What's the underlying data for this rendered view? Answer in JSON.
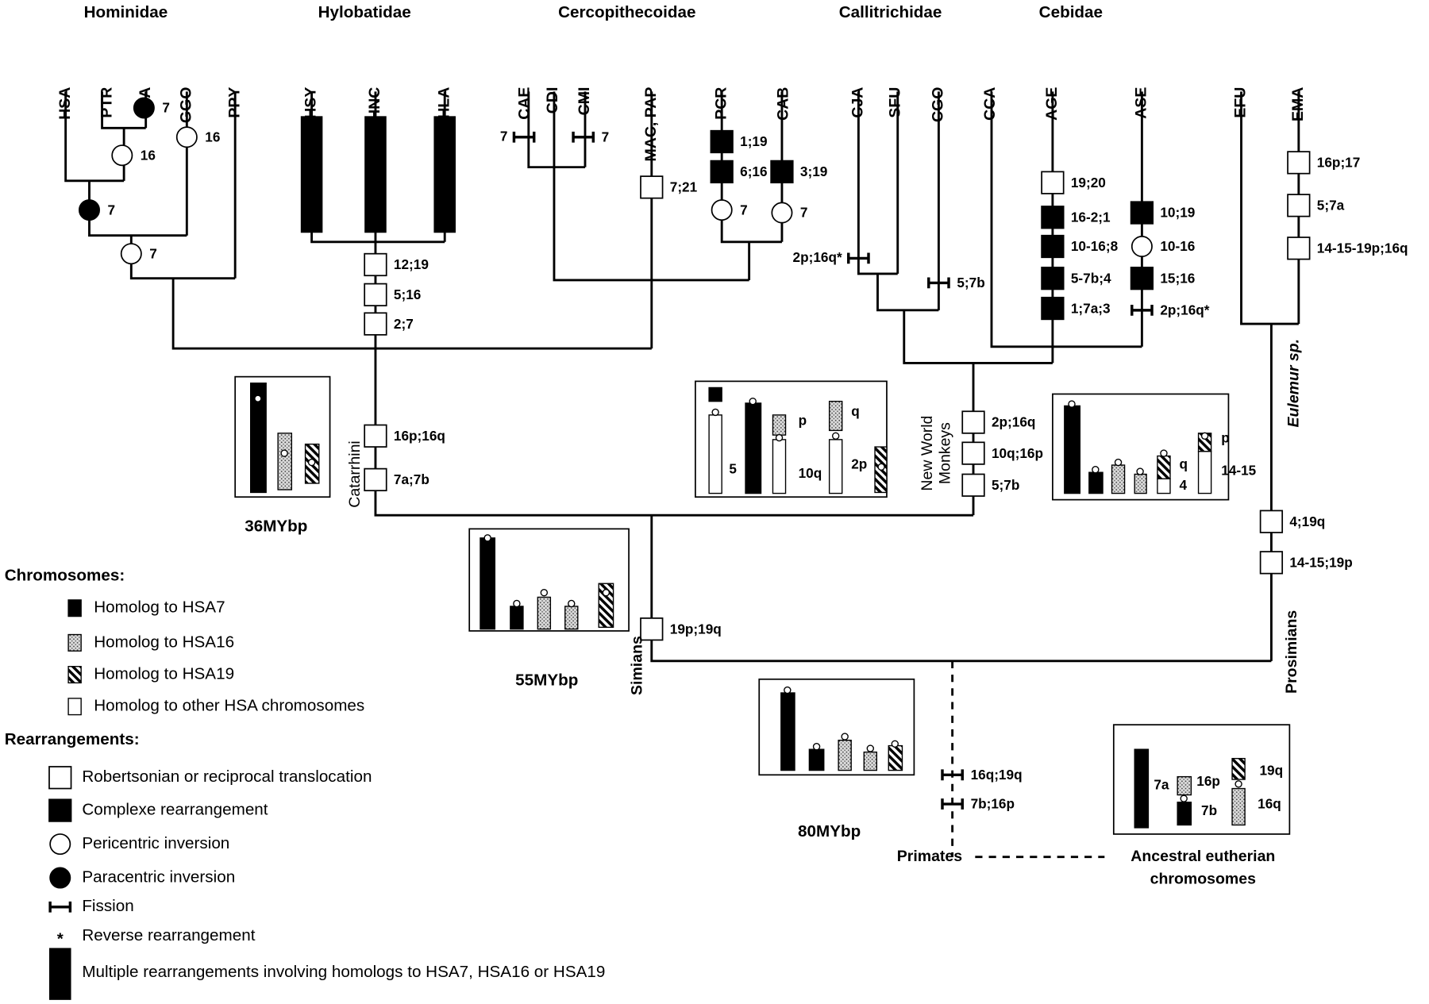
{
  "families": [
    "Hominidae",
    "Hylobatidae",
    "Cercopithecoidae",
    "Callitrichidae",
    "Cebidae"
  ],
  "species": [
    "HSA",
    "PTR",
    "PPA",
    "GGO",
    "PPY",
    "HSY",
    "HNC",
    "HLA",
    "CAE",
    "CDI",
    "CMI",
    "MAC, PAP",
    "PCR",
    "CAB",
    "CJA",
    "SFU",
    "CGO",
    "CCA",
    "AGE",
    "ASE",
    "EFU",
    "EMA"
  ],
  "events": [
    "7",
    "16",
    "16",
    "7",
    "7",
    "12;19",
    "5;16",
    "2;7",
    "16p;16q",
    "7a;7b",
    "7",
    "7",
    "7;21",
    "1;19",
    "6;16",
    "7",
    "3;19",
    "7",
    "2p;16q*",
    "5;7b",
    "19;20",
    "16-2;1",
    "10-16;8",
    "5-7b;4",
    "1;7a;3",
    "10;19",
    "10-16",
    "15;16",
    "2p;16q*",
    "2p;16q",
    "10q;16p",
    "5;7b",
    "16p;17",
    "5;7a",
    "14-15-19p;16q",
    "4;19q",
    "14-15;19p",
    "19p;19q",
    "16q;19q",
    "7b;16p"
  ],
  "clades": {
    "catarrhini": "Catarrhini",
    "new_world_monkeys": [
      "New World",
      "Monkeys"
    ],
    "simians": "Simians",
    "prosimians": "Prosimians",
    "eulemur": "Eulemur sp.",
    "primates": "Primates",
    "ancestral": [
      "Ancestral  eutherian",
      "chromosomes"
    ]
  },
  "ages": [
    "36MYbp",
    "55MYbp",
    "80MYbp"
  ],
  "karyotype_labels": [
    "5",
    "p",
    "10q",
    "q",
    "2p",
    "q",
    "4",
    "p",
    "14-15",
    "7a",
    "16p",
    "7b",
    "19q",
    "16q"
  ],
  "legend": {
    "chromosomes_title": "Chromosomes:",
    "chromosomes": [
      "Homolog to HSA7",
      "Homolog to HSA16",
      "Homolog to HSA19",
      "Homolog to other HSA chromosomes"
    ],
    "rearrangements_title": "Rearrangements:",
    "rearrangements": [
      "Robertsonian or reciprocal translocation",
      "Complexe rearrangement",
      "Pericentric inversion",
      "Paracentric inversion",
      "Fission",
      "Reverse rearrangement",
      "Multiple rearrangements involving homologs to HSA7, HSA16 or HSA19"
    ],
    "reverse_mark": "*"
  }
}
